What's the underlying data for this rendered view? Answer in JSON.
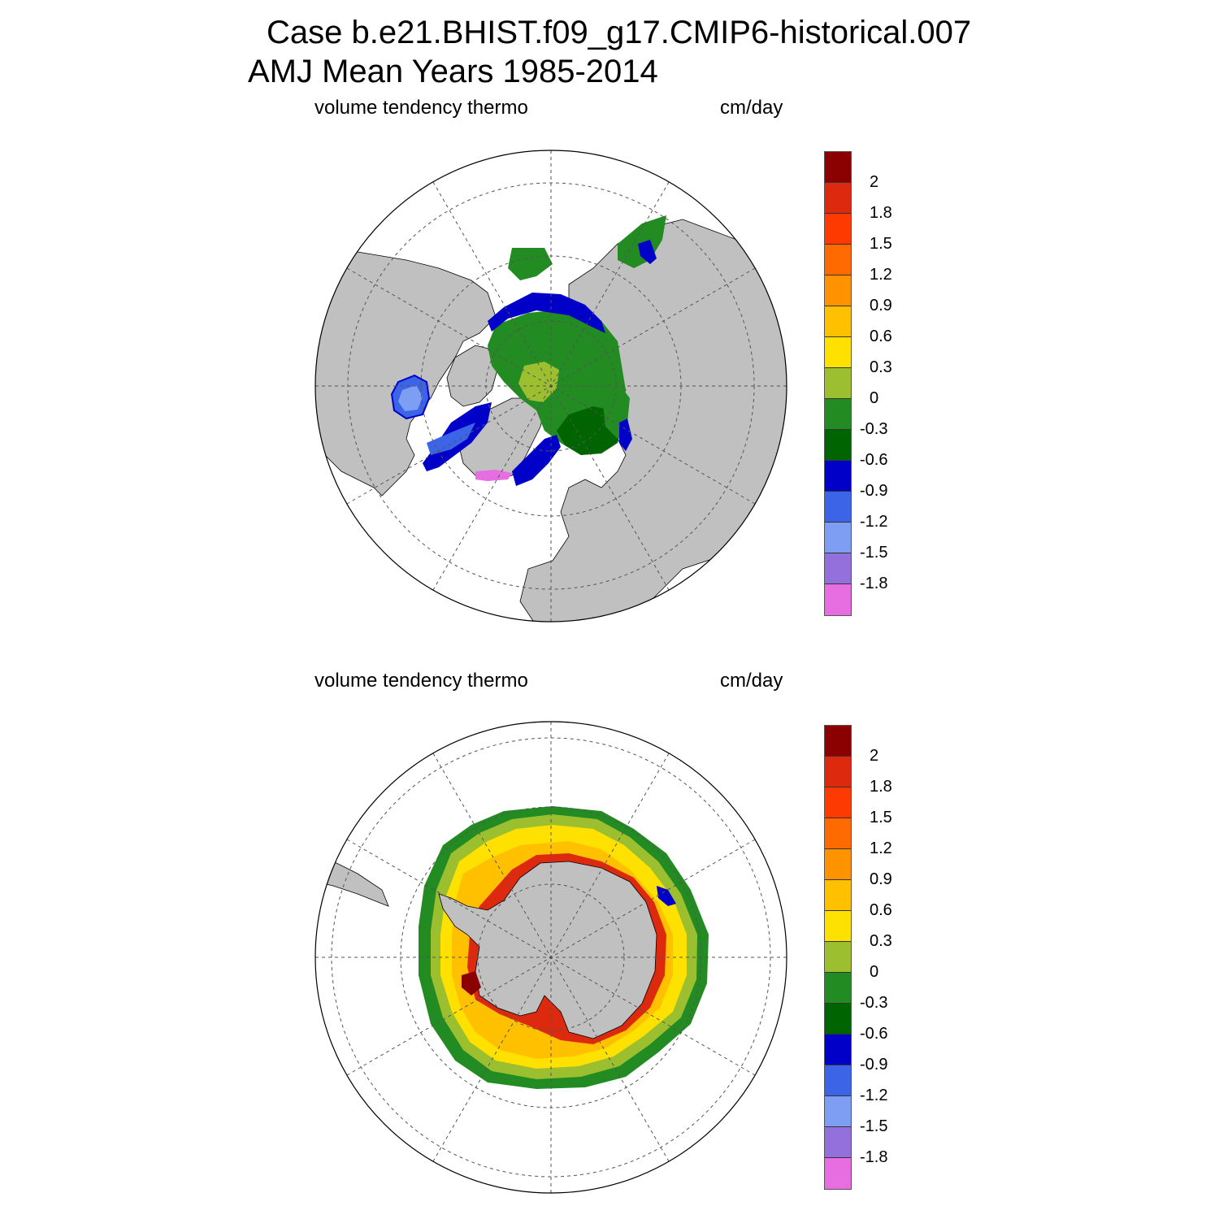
{
  "header": {
    "case_title": "Case b.e21.BHIST.f09_g17.CMIP6-historical.007",
    "period_title": "AMJ Mean   Years 1985-2014"
  },
  "panels": [
    {
      "id": "north",
      "hemisphere": "Northern",
      "field_label": "volume tendency thermo",
      "units_label": "cm/day"
    },
    {
      "id": "south",
      "hemisphere": "Southern",
      "field_label": "volume tendency thermo",
      "units_label": "cm/day"
    }
  ],
  "colorbar": {
    "labels": [
      "2",
      "1.8",
      "1.5",
      "1.2",
      "0.9",
      "0.6",
      "0.3",
      "0",
      "-0.3",
      "-0.6",
      "-0.9",
      "-1.2",
      "-1.5",
      "-1.8"
    ],
    "colors": [
      "#8b0000",
      "#dd2a0f",
      "#ff3a00",
      "#ff6a00",
      "#ff9200",
      "#ffc000",
      "#ffe100",
      "#9cbf30",
      "#228b22",
      "#006400",
      "#0000c8",
      "#3c64e6",
      "#7d9ef2",
      "#9370db",
      "#e66ee0"
    ]
  },
  "map_style": {
    "land_color": "#c0c0c0",
    "ocean_color": "#ffffff",
    "grid_color": "#555555"
  }
}
